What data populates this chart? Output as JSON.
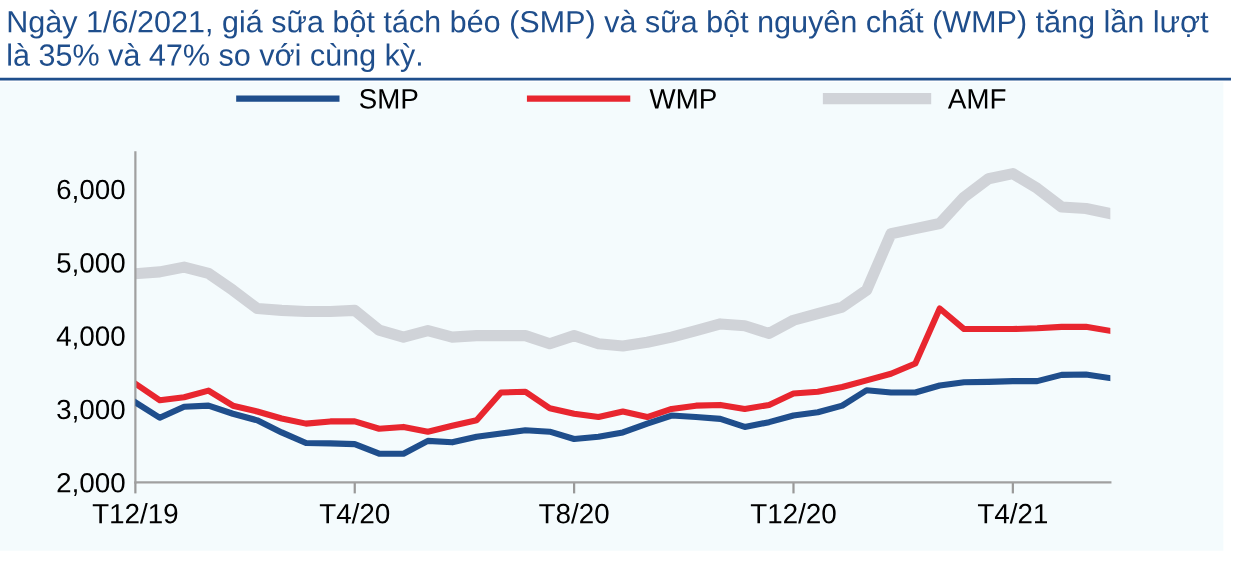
{
  "chart_data": {
    "type": "line",
    "title": "Ngày 1/6/2021, giá sữa bột tách béo (SMP) và sữa bột nguyên chất (WMP) tăng lần lượt là 35% và 47% so với cùng kỳ.",
    "categories": [
      "T12/19",
      null,
      null,
      null,
      null,
      null,
      null,
      null,
      null,
      "T4/20",
      null,
      null,
      null,
      null,
      null,
      null,
      null,
      null,
      "T8/20",
      null,
      null,
      null,
      null,
      null,
      null,
      null,
      null,
      "T12/20",
      null,
      null,
      null,
      null,
      null,
      null,
      null,
      null,
      "T4/21",
      null,
      null,
      null,
      null
    ],
    "series": [
      {
        "name": "SMP",
        "color": "#1f4e8c",
        "values": [
          3090,
          2880,
          3030,
          3045,
          2935,
          2845,
          2680,
          2535,
          2530,
          2520,
          2390,
          2390,
          2565,
          2545,
          2620,
          2665,
          2710,
          2690,
          2590,
          2620,
          2680,
          2800,
          2910,
          2890,
          2865,
          2755,
          2820,
          2910,
          2955,
          3045,
          3255,
          3225,
          3225,
          3320,
          3365,
          3370,
          3380,
          3380,
          3465,
          3470,
          3420
        ]
      },
      {
        "name": "WMP",
        "color": "#e8262f",
        "values": [
          3345,
          3120,
          3160,
          3250,
          3045,
          2965,
          2870,
          2800,
          2830,
          2830,
          2730,
          2755,
          2690,
          2770,
          2845,
          3225,
          3235,
          3010,
          2935,
          2890,
          2965,
          2890,
          3000,
          3045,
          3055,
          3000,
          3055,
          3210,
          3235,
          3300,
          3390,
          3480,
          3620,
          4370,
          4090,
          4090,
          4090,
          4100,
          4120,
          4120,
          4065
        ]
      },
      {
        "name": "AMF",
        "color": "#d0d3d8",
        "values": [
          4845,
          4870,
          4935,
          4850,
          4620,
          4370,
          4345,
          4330,
          4330,
          4345,
          4075,
          3980,
          4070,
          3980,
          4000,
          4000,
          4000,
          3890,
          4000,
          3890,
          3860,
          3910,
          3980,
          4070,
          4160,
          4135,
          4030,
          4210,
          4300,
          4390,
          4620,
          5390,
          5460,
          5530,
          5890,
          6140,
          6210,
          6010,
          5755,
          5735,
          5665
        ]
      }
    ],
    "ylim": [
      2000,
      6500
    ],
    "yticks": [
      {
        "value": 2000,
        "label": "2,000"
      },
      {
        "value": 3000,
        "label": "3,000"
      },
      {
        "value": 4000,
        "label": "4,000"
      },
      {
        "value": 5000,
        "label": "5,000"
      },
      {
        "value": 6000,
        "label": "6,000"
      }
    ],
    "legend": "top",
    "grid": false,
    "marker": "none",
    "line_style": "solid"
  }
}
